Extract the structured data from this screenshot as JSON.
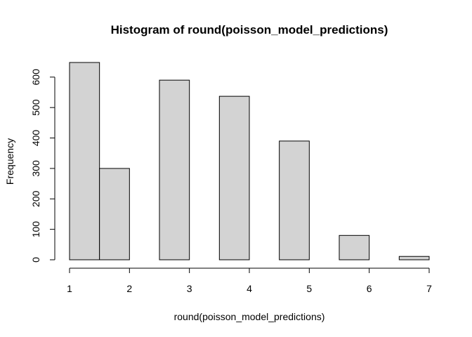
{
  "chart_data": {
    "type": "bar",
    "title": "Histogram of round(poisson_model_predictions)",
    "xlabel": "round(poisson_model_predictions)",
    "ylabel": "Frequency",
    "bins": [
      {
        "x0": 1.0,
        "x1": 1.5,
        "count": 648
      },
      {
        "x0": 1.5,
        "x1": 2.0,
        "count": 300
      },
      {
        "x0": 2.0,
        "x1": 2.5,
        "count": 0
      },
      {
        "x0": 2.5,
        "x1": 3.0,
        "count": 590
      },
      {
        "x0": 3.0,
        "x1": 3.5,
        "count": 0
      },
      {
        "x0": 3.5,
        "x1": 4.0,
        "count": 537
      },
      {
        "x0": 4.0,
        "x1": 4.5,
        "count": 0
      },
      {
        "x0": 4.5,
        "x1": 5.0,
        "count": 390
      },
      {
        "x0": 5.0,
        "x1": 5.5,
        "count": 0
      },
      {
        "x0": 5.5,
        "x1": 6.0,
        "count": 80
      },
      {
        "x0": 6.0,
        "x1": 6.5,
        "count": 0
      },
      {
        "x0": 6.5,
        "x1": 7.0,
        "count": 11
      }
    ],
    "xlim": [
      1,
      7
    ],
    "ylim": [
      0,
      648
    ],
    "x_ticks": [
      1,
      2,
      3,
      4,
      5,
      6,
      7
    ],
    "y_ticks": [
      0,
      100,
      200,
      300,
      400,
      500,
      600
    ],
    "grid": false,
    "bar_color": "#d3d3d3",
    "edge_color": "#000000"
  }
}
